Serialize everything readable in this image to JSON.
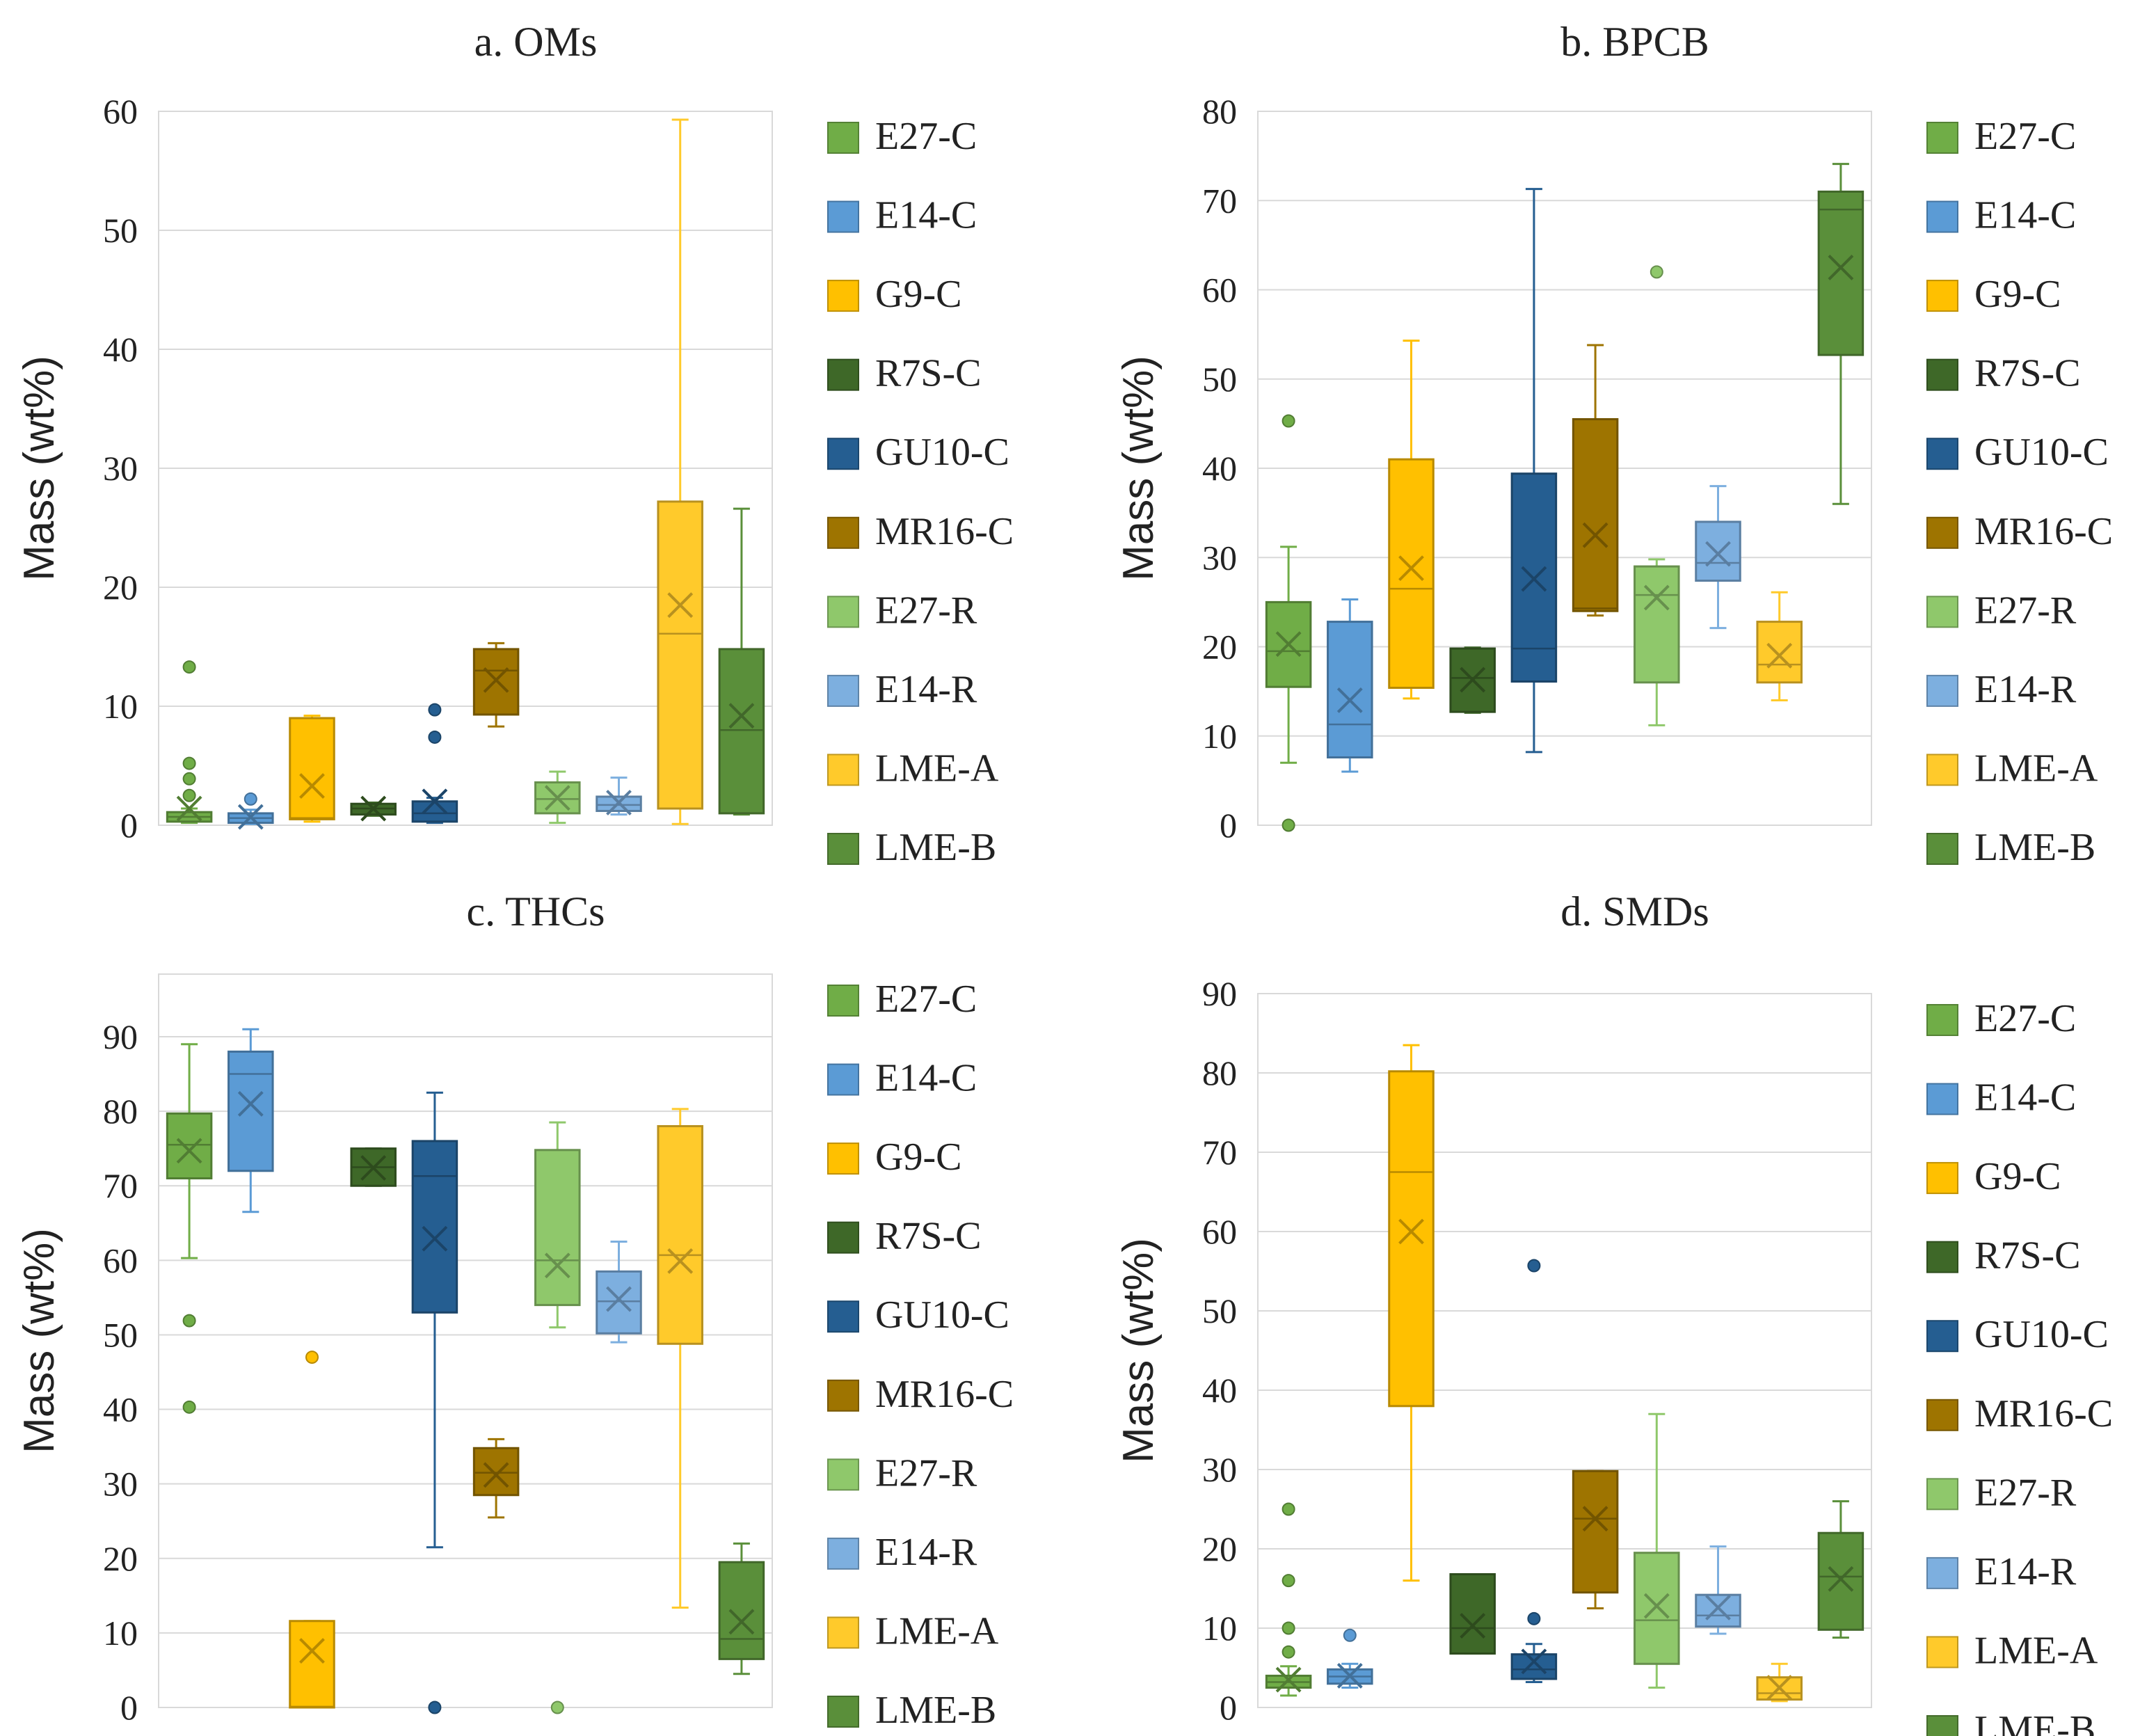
{
  "legend_order": [
    "E27-C",
    "E14-C",
    "G9-C",
    "R7S-C",
    "GU10-C",
    "MR16-C",
    "E27-R",
    "E14-R",
    "LME-A",
    "LME-B"
  ],
  "colors": {
    "E27-C": "#70AD47",
    "E14-C": "#5B9BD5",
    "G9-C": "#FFC000",
    "R7S-C": "#3E6828",
    "GU10-C": "#255E91",
    "MR16-C": "#9E7400",
    "E27-R": "#8FC86B",
    "E14-R": "#7DAFDF",
    "LME-A": "#FFCA2B",
    "LME-B": "#5A8F3A"
  },
  "chart_data": [
    {
      "type": "box",
      "title": "a. OMs",
      "ylabel": "Mass (wt%)",
      "ylim": [
        0,
        60
      ],
      "yticks": [
        "0",
        "10",
        "20",
        "30",
        "40",
        "50",
        "60"
      ],
      "boxes": [
        {
          "name": "E27-C",
          "whisker_low": 0.2,
          "q1": 0.3,
          "median": 0.7,
          "q3": 1.1,
          "whisker_high": 1.4,
          "mean": 1.4,
          "outliers": [
            13.3,
            5.2,
            3.9,
            2.5
          ]
        },
        {
          "name": "E14-C",
          "whisker_low": 0.1,
          "q1": 0.2,
          "median": 0.6,
          "q3": 1.0,
          "whisker_high": 1.3,
          "mean": 0.7,
          "outliers": [
            2.2
          ]
        },
        {
          "name": "G9-C",
          "whisker_low": 0.3,
          "q1": 0.5,
          "median": 0.6,
          "q3": 9.0,
          "whisker_high": 9.2,
          "mean": 3.3,
          "outliers": []
        },
        {
          "name": "R7S-C",
          "whisker_low": 0.8,
          "q1": 0.9,
          "median": 1.4,
          "q3": 1.8,
          "whisker_high": 1.9,
          "mean": 1.4,
          "outliers": []
        },
        {
          "name": "GU10-C",
          "whisker_low": 0.2,
          "q1": 0.3,
          "median": 1.0,
          "q3": 2.0,
          "whisker_high": 2.3,
          "mean": 2.0,
          "outliers": [
            9.7,
            7.4
          ]
        },
        {
          "name": "MR16-C",
          "whisker_low": 8.3,
          "q1": 9.3,
          "median": 13.0,
          "q3": 14.8,
          "whisker_high": 15.3,
          "mean": 12.2,
          "outliers": []
        },
        {
          "name": "E27-R",
          "whisker_low": 0.2,
          "q1": 1.0,
          "median": 2.2,
          "q3": 3.6,
          "whisker_high": 4.5,
          "mean": 2.3,
          "outliers": []
        },
        {
          "name": "E14-R",
          "whisker_low": 0.9,
          "q1": 1.2,
          "median": 1.7,
          "q3": 2.4,
          "whisker_high": 4.0,
          "mean": 1.9,
          "outliers": []
        },
        {
          "name": "LME-A",
          "whisker_low": 0.1,
          "q1": 1.4,
          "median": 16.1,
          "q3": 27.2,
          "whisker_high": 59.3,
          "mean": 18.5,
          "outliers": []
        },
        {
          "name": "LME-B",
          "whisker_low": 0.9,
          "q1": 1.0,
          "median": 8.0,
          "q3": 14.8,
          "whisker_high": 26.6,
          "mean": 9.2,
          "outliers": []
        }
      ]
    },
    {
      "type": "box",
      "title": "b. BPCB",
      "ylabel": "Mass (wt%)",
      "ylim": [
        0,
        80
      ],
      "yticks": [
        "0",
        "10",
        "20",
        "30",
        "40",
        "50",
        "60",
        "70",
        "80"
      ],
      "boxes": [
        {
          "name": "E27-C",
          "whisker_low": 7.0,
          "q1": 15.5,
          "median": 19.5,
          "q3": 25.0,
          "whisker_high": 31.2,
          "mean": 20.3,
          "outliers": [
            45.3,
            0.0
          ]
        },
        {
          "name": "E14-C",
          "whisker_low": 6.0,
          "q1": 7.6,
          "median": 11.3,
          "q3": 22.8,
          "whisker_high": 25.3,
          "mean": 14.0,
          "outliers": []
        },
        {
          "name": "G9-C",
          "whisker_low": 14.2,
          "q1": 15.4,
          "median": 26.5,
          "q3": 41.0,
          "whisker_high": 54.3,
          "mean": 28.8,
          "outliers": []
        },
        {
          "name": "R7S-C",
          "whisker_low": 12.6,
          "q1": 12.7,
          "median": 16.5,
          "q3": 19.8,
          "whisker_high": 19.9,
          "mean": 16.3,
          "outliers": []
        },
        {
          "name": "GU10-C",
          "whisker_low": 8.2,
          "q1": 16.1,
          "median": 19.8,
          "q3": 39.4,
          "whisker_high": 71.3,
          "mean": 27.6,
          "outliers": []
        },
        {
          "name": "MR16-C",
          "whisker_low": 23.5,
          "q1": 24.0,
          "median": 24.3,
          "q3": 45.5,
          "whisker_high": 53.8,
          "mean": 32.5,
          "outliers": []
        },
        {
          "name": "E27-R",
          "whisker_low": 11.2,
          "q1": 16.0,
          "median": 25.8,
          "q3": 29.0,
          "whisker_high": 29.8,
          "mean": 25.5,
          "outliers": [
            62.0
          ]
        },
        {
          "name": "E14-R",
          "whisker_low": 22.1,
          "q1": 27.4,
          "median": 29.4,
          "q3": 34.0,
          "whisker_high": 38.0,
          "mean": 30.4,
          "outliers": []
        },
        {
          "name": "LME-A",
          "whisker_low": 14.0,
          "q1": 16.0,
          "median": 18.0,
          "q3": 22.8,
          "whisker_high": 26.1,
          "mean": 19.0,
          "outliers": []
        },
        {
          "name": "LME-B",
          "whisker_low": 36.0,
          "q1": 52.7,
          "median": 69.0,
          "q3": 71.0,
          "whisker_high": 74.1,
          "mean": 62.5,
          "outliers": []
        }
      ]
    },
    {
      "type": "box",
      "title": "c. THCs",
      "ylabel": "Mass (wt%)",
      "ylim": [
        0,
        98
      ],
      "yticks": [
        "0",
        "10",
        "20",
        "30",
        "40",
        "50",
        "60",
        "70",
        "80",
        "90"
      ],
      "boxes": [
        {
          "name": "E27-C",
          "whisker_low": 60.3,
          "q1": 71.0,
          "median": 75.5,
          "q3": 79.7,
          "whisker_high": 89.0,
          "mean": 74.7,
          "outliers": [
            51.9,
            40.3
          ]
        },
        {
          "name": "E14-C",
          "whisker_low": 66.5,
          "q1": 72.0,
          "median": 85.0,
          "q3": 88.0,
          "whisker_high": 91.0,
          "mean": 81.0,
          "outliers": []
        },
        {
          "name": "G9-C",
          "whisker_low": 0.0,
          "q1": 0.0,
          "median": 0.1,
          "q3": 11.6,
          "whisker_high": 11.6,
          "mean": 7.6,
          "outliers": [
            47.0
          ]
        },
        {
          "name": "R7S-C",
          "whisker_low": 70.0,
          "q1": 70.0,
          "median": 72.5,
          "q3": 75.0,
          "whisker_high": 75.0,
          "mean": 72.4,
          "outliers": []
        },
        {
          "name": "GU10-C",
          "whisker_low": 21.5,
          "q1": 53.0,
          "median": 71.3,
          "q3": 76.0,
          "whisker_high": 82.5,
          "mean": 62.9,
          "outliers": [
            0.0
          ]
        },
        {
          "name": "MR16-C",
          "whisker_low": 25.5,
          "q1": 28.5,
          "median": 31.5,
          "q3": 34.8,
          "whisker_high": 36.0,
          "mean": 31.2,
          "outliers": []
        },
        {
          "name": "E27-R",
          "whisker_low": 51.0,
          "q1": 54.0,
          "median": 60.0,
          "q3": 74.8,
          "whisker_high": 78.5,
          "mean": 59.3,
          "outliers": [
            0.0
          ]
        },
        {
          "name": "E14-R",
          "whisker_low": 49.0,
          "q1": 50.2,
          "median": 54.5,
          "q3": 58.5,
          "whisker_high": 62.5,
          "mean": 54.8,
          "outliers": []
        },
        {
          "name": "LME-A",
          "whisker_low": 13.4,
          "q1": 48.8,
          "median": 60.7,
          "q3": 78.0,
          "whisker_high": 80.3,
          "mean": 59.9,
          "outliers": []
        },
        {
          "name": "LME-B",
          "whisker_low": 4.5,
          "q1": 6.5,
          "median": 9.2,
          "q3": 19.5,
          "whisker_high": 22.0,
          "mean": 11.5,
          "outliers": []
        }
      ]
    },
    {
      "type": "box",
      "title": "d. SMDs",
      "ylabel": "Mass (wt%)",
      "ylim": [
        0,
        90
      ],
      "yticks": [
        "0",
        "10",
        "20",
        "30",
        "40",
        "50",
        "60",
        "70",
        "80",
        "90"
      ],
      "boxes": [
        {
          "name": "E27-C",
          "whisker_low": 1.5,
          "q1": 2.5,
          "median": 3.2,
          "q3": 4.0,
          "whisker_high": 5.2,
          "mean": 3.5,
          "outliers": [
            25.0,
            16.0,
            10.0,
            7.0
          ]
        },
        {
          "name": "E14-C",
          "whisker_low": 2.5,
          "q1": 3.0,
          "median": 3.9,
          "q3": 4.8,
          "whisker_high": 5.5,
          "mean": 4.0,
          "outliers": [
            9.1
          ]
        },
        {
          "name": "G9-C",
          "whisker_low": 16.0,
          "q1": 38.0,
          "median": 67.5,
          "q3": 80.2,
          "whisker_high": 83.5,
          "mean": 60.0,
          "outliers": []
        },
        {
          "name": "R7S-C",
          "whisker_low": 6.8,
          "q1": 6.8,
          "median": 10.0,
          "q3": 16.8,
          "whisker_high": 16.8,
          "mean": 10.3,
          "outliers": []
        },
        {
          "name": "GU10-C",
          "whisker_low": 3.2,
          "q1": 3.6,
          "median": 4.8,
          "q3": 6.7,
          "whisker_high": 8.0,
          "mean": 5.8,
          "outliers": [
            55.7,
            11.2
          ]
        },
        {
          "name": "MR16-C",
          "whisker_low": 12.5,
          "q1": 14.5,
          "median": 23.8,
          "q3": 29.8,
          "whisker_high": 29.8,
          "mean": 23.8,
          "outliers": []
        },
        {
          "name": "E27-R",
          "whisker_low": 2.5,
          "q1": 5.5,
          "median": 11.0,
          "q3": 19.5,
          "whisker_high": 37.0,
          "mean": 12.8,
          "outliers": []
        },
        {
          "name": "E14-R",
          "whisker_low": 9.3,
          "q1": 10.2,
          "median": 11.6,
          "q3": 14.2,
          "whisker_high": 20.3,
          "mean": 12.6,
          "outliers": []
        },
        {
          "name": "LME-A",
          "whisker_low": 0.8,
          "q1": 1.0,
          "median": 1.8,
          "q3": 3.8,
          "whisker_high": 5.5,
          "mean": 2.5,
          "outliers": []
        },
        {
          "name": "LME-B",
          "whisker_low": 8.8,
          "q1": 9.8,
          "median": 16.5,
          "q3": 22.0,
          "whisker_high": 26.0,
          "mean": 16.2,
          "outliers": []
        }
      ]
    }
  ]
}
